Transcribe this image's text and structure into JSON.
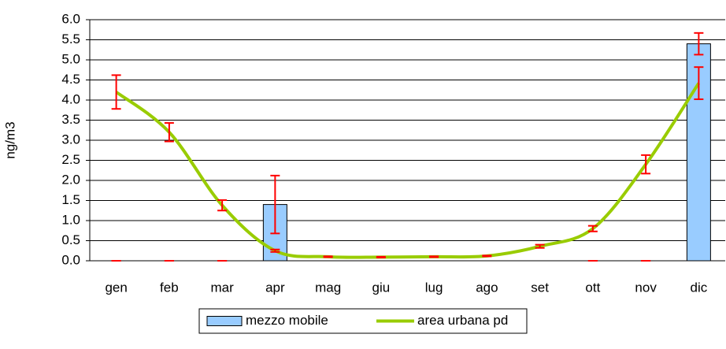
{
  "chart_data": {
    "type": "bar-line",
    "y_label": "ng/m3",
    "categories": [
      "gen",
      "feb",
      "mar",
      "apr",
      "mag",
      "giu",
      "lug",
      "ago",
      "set",
      "ott",
      "nov",
      "dic"
    ],
    "ylim": [
      0,
      6
    ],
    "yticks": [
      {
        "value": 0,
        "label": "0.0"
      },
      {
        "value": 0.5,
        "label": "0.5"
      },
      {
        "value": 1,
        "label": "1.0"
      },
      {
        "value": 1.5,
        "label": "1.5"
      },
      {
        "value": 2,
        "label": "2.0"
      },
      {
        "value": 2.5,
        "label": "2.5"
      },
      {
        "value": 3,
        "label": "3.0"
      },
      {
        "value": 3.5,
        "label": "3.5"
      },
      {
        "value": 4,
        "label": "4.0"
      },
      {
        "value": 4.5,
        "label": "4.5"
      },
      {
        "value": 5,
        "label": "5.0"
      },
      {
        "value": 5.5,
        "label": "5.5"
      },
      {
        "value": 6,
        "label": "6.0"
      }
    ],
    "grid": true,
    "error_color": "#ff0000",
    "series": [
      {
        "name": "mezzo mobile",
        "type": "bar",
        "color": "#99ccff",
        "values": [
          0,
          0,
          0,
          1.4,
          null,
          null,
          null,
          null,
          null,
          0,
          0,
          5.4
        ],
        "errors": [
          0,
          0,
          0,
          0.72,
          null,
          null,
          null,
          null,
          null,
          0,
          0,
          0.27
        ]
      },
      {
        "name": "area urbana pd",
        "type": "line",
        "color": "#99cc00",
        "values": [
          4.2,
          3.2,
          1.38,
          0.25,
          0.1,
          0.09,
          0.1,
          0.12,
          0.36,
          0.8,
          2.4,
          4.42
        ],
        "errors": [
          0.42,
          0.23,
          0.13,
          0.03,
          0.01,
          0.01,
          0.01,
          0.01,
          0.04,
          0.07,
          0.23,
          0.4
        ]
      }
    ]
  }
}
